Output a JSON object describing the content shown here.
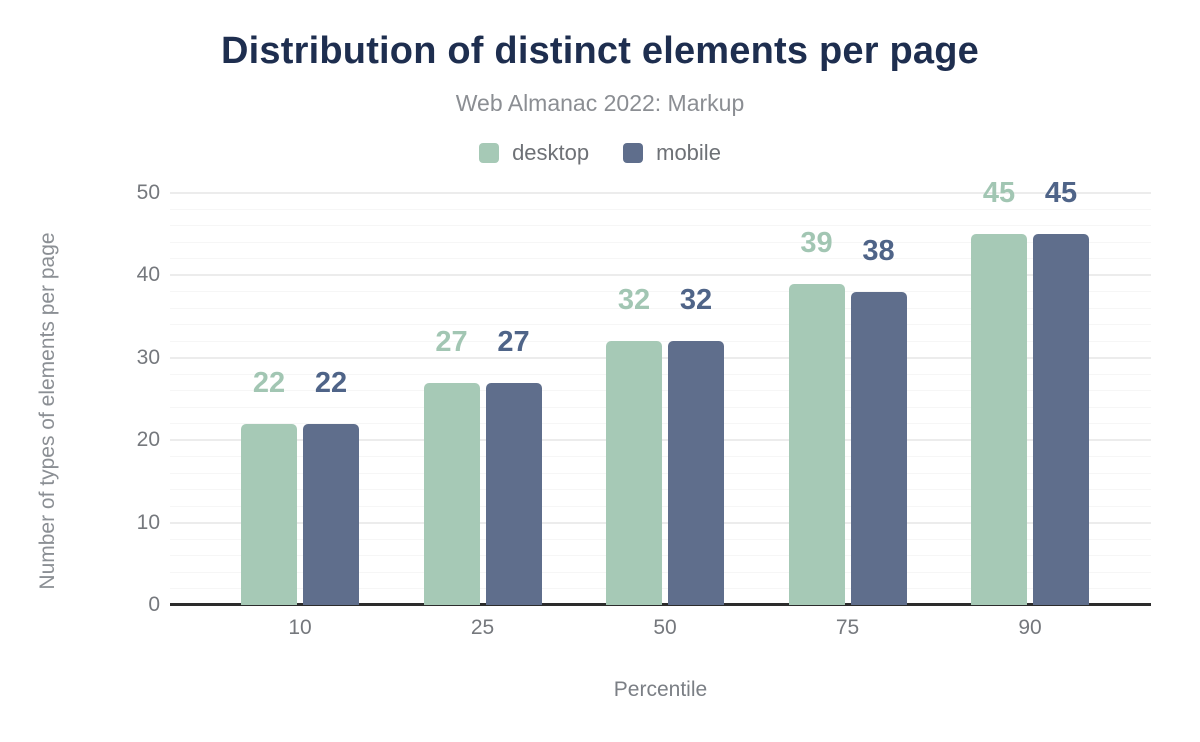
{
  "header": {
    "title": "Distribution of distinct elements per page",
    "subtitle": "Web Almanac 2022: Markup"
  },
  "legend": [
    {
      "label": "desktop",
      "color": "#a6c9b6"
    },
    {
      "label": "mobile",
      "color": "#5f6e8c"
    }
  ],
  "chart_data": {
    "type": "bar",
    "title": "Distribution of distinct elements per page",
    "subtitle": "Web Almanac 2022: Markup",
    "categories": [
      "10",
      "25",
      "50",
      "75",
      "90"
    ],
    "series": [
      {
        "name": "desktop",
        "color": "#a6c9b6",
        "label_color": "#a2c6b3",
        "values": [
          22,
          27,
          32,
          39,
          45
        ]
      },
      {
        "name": "mobile",
        "color": "#5f6e8c",
        "label_color": "#4f6488",
        "values": [
          22,
          27,
          32,
          38,
          45
        ]
      }
    ],
    "xlabel": "Percentile",
    "ylabel": "Number of types of elements per page",
    "ylim": [
      0,
      50
    ],
    "yticks": [
      0,
      10,
      20,
      30,
      40,
      50
    ],
    "minor_grid_step": 2,
    "grid": true,
    "legend_position": "top",
    "colors": {
      "title": "#1e2e4f",
      "subtitle": "#8b8e93",
      "tick_label": "#75787d",
      "axis_line": "#2c2c2c",
      "major_grid": "#ececec",
      "minor_grid": "#f6f6f6"
    }
  }
}
